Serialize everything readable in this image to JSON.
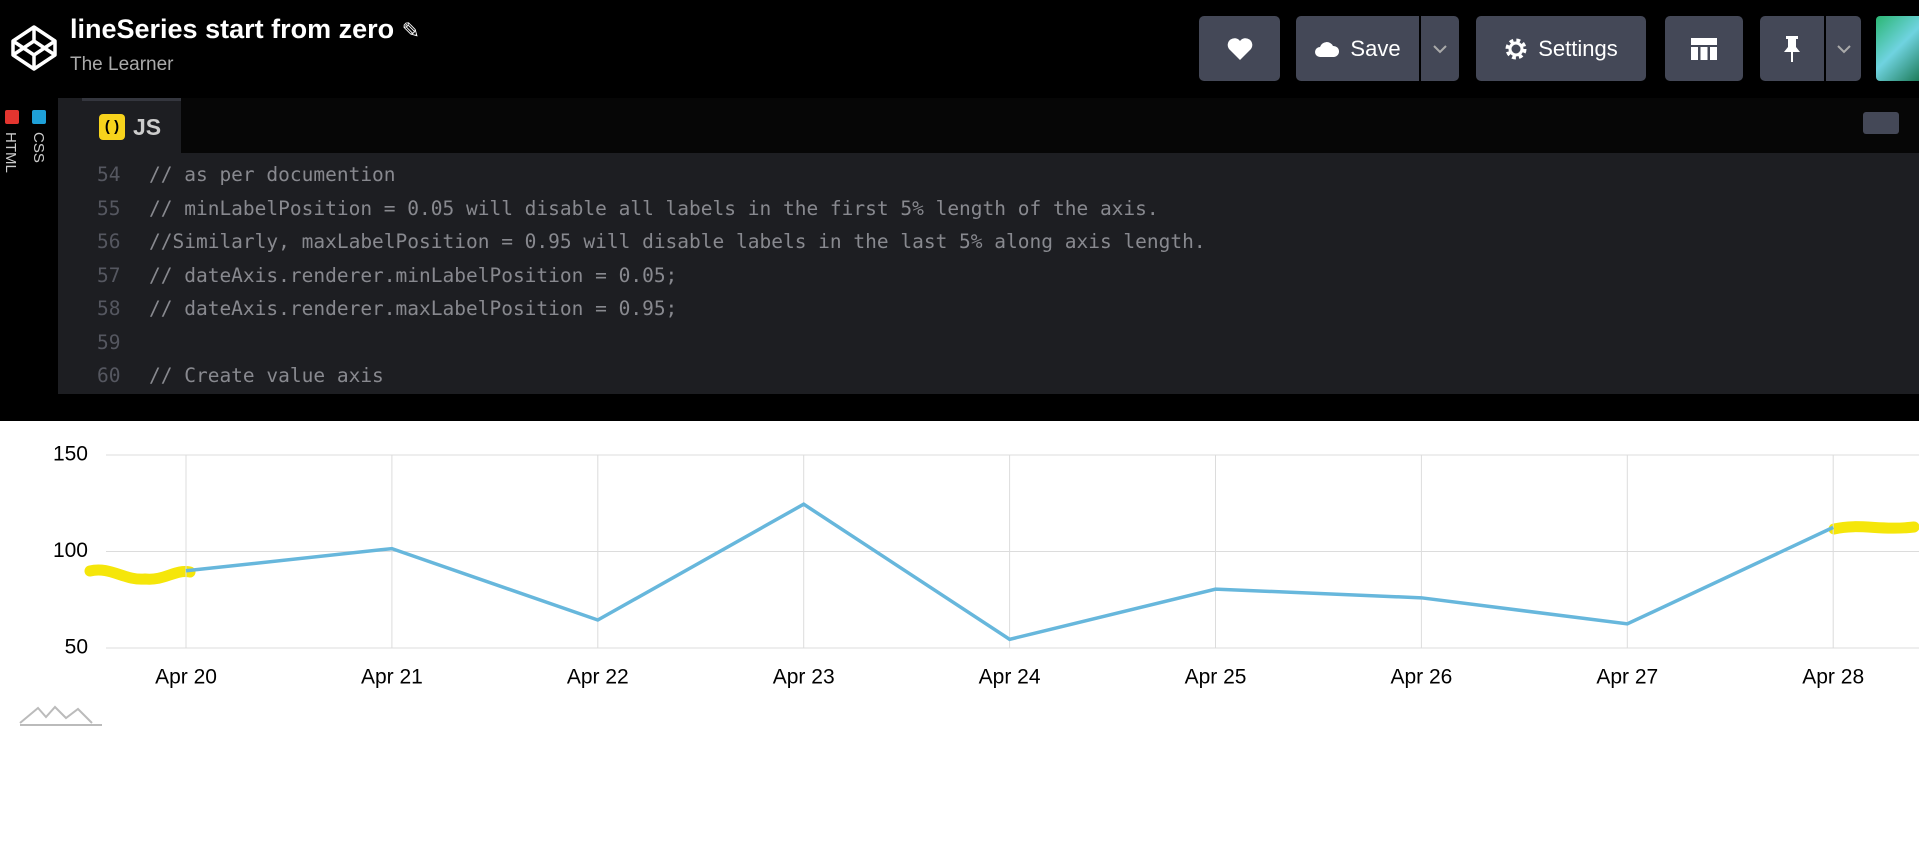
{
  "header": {
    "title": "lineSeries start from zero",
    "author": "The Learner",
    "buttons": {
      "save": "Save",
      "settings": "Settings"
    }
  },
  "side_tabs": [
    "HTML",
    "CSS"
  ],
  "editor": {
    "tab": "JS",
    "lines": [
      {
        "number": 54,
        "text": "// as per documention"
      },
      {
        "number": 55,
        "text": "// minLabelPosition = 0.05 will disable all labels in the first 5% length of the axis."
      },
      {
        "number": 56,
        "text": "//Similarly, maxLabelPosition = 0.95 will disable labels in the last 5% along axis length."
      },
      {
        "number": 57,
        "text": "// dateAxis.renderer.minLabelPosition = 0.05;"
      },
      {
        "number": 58,
        "text": "// dateAxis.renderer.maxLabelPosition = 0.95;"
      },
      {
        "number": 59
      },
      {
        "number": 60,
        "text": "// Create value axis"
      }
    ]
  },
  "chart_data": {
    "type": "line",
    "categories": [
      "Apr 20",
      "Apr 21",
      "Apr 22",
      "Apr 23",
      "Apr 24",
      "Apr 25",
      "Apr 26",
      "Apr 27",
      "Apr 28"
    ],
    "values": [
      90,
      101.5,
      64.5,
      124.5,
      54.5,
      80.5,
      76,
      62.5,
      112.5
    ],
    "color": "#67b7dc",
    "ylim": [
      50,
      150
    ],
    "yticks": [
      50,
      100,
      150
    ],
    "grid": true
  }
}
